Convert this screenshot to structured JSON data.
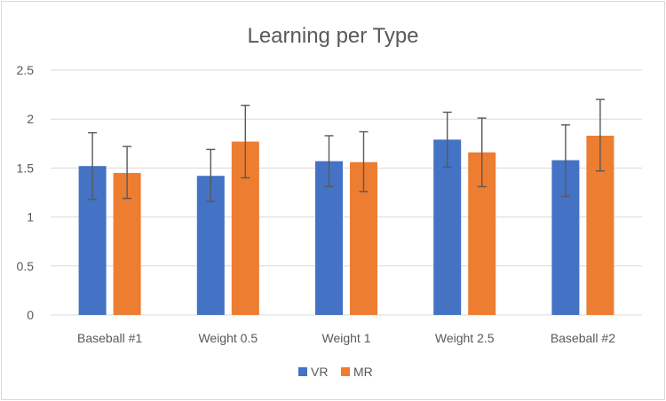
{
  "chart_data": {
    "type": "bar",
    "title": "Learning per Type",
    "xlabel": "",
    "ylabel": "",
    "categories": [
      "Baseball #1",
      "Weight 0.5",
      "Weight 1",
      "Weight 2.5",
      "Baseball #2"
    ],
    "series": [
      {
        "name": "VR",
        "color": "#4472c4",
        "values": [
          1.52,
          1.42,
          1.57,
          1.79,
          1.58
        ],
        "error_low": [
          1.18,
          1.16,
          1.31,
          1.51,
          1.21
        ],
        "error_high": [
          1.86,
          1.69,
          1.83,
          2.07,
          1.94
        ]
      },
      {
        "name": "MR",
        "color": "#ed7d31",
        "values": [
          1.45,
          1.77,
          1.56,
          1.66,
          1.83
        ],
        "error_low": [
          1.19,
          1.4,
          1.26,
          1.31,
          1.47
        ],
        "error_high": [
          1.72,
          2.14,
          1.87,
          2.01,
          2.2
        ]
      }
    ],
    "ylim": [
      0,
      2.5
    ],
    "yticks": [
      "0",
      "0.5",
      "1",
      "1.5",
      "2",
      "2.5"
    ],
    "grid": true,
    "legend": "bottom"
  }
}
